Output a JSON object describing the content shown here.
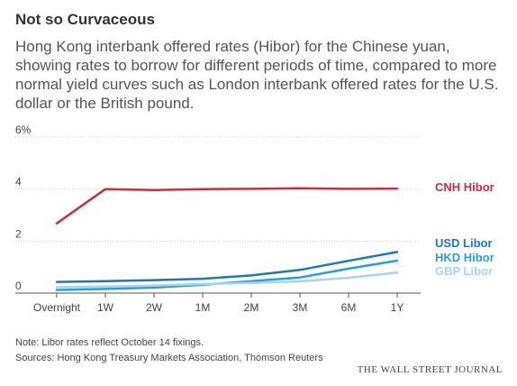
{
  "header": {
    "title": "Not so Curvaceous",
    "subtitle": "Hong Kong interbank offered rates (Hibor) for the Chinese yuan, showing rates to borrow for different periods of time, compared to more normal yield curves such as London interbank offered rates for the U.S. dollar or the British pound."
  },
  "footer": {
    "note": "Note: Libor rates reflect October 14 fixings.",
    "sources": "Sources: Hong Kong Treasury Markets Association, Thomson Reuters",
    "publisher": "THE WALL STREET JOURNAL"
  },
  "chart_data": {
    "type": "line",
    "title": "Not so Curvaceous",
    "xlabel": "",
    "ylabel": "",
    "categories": [
      "Overnight",
      "1W",
      "2W",
      "1M",
      "2M",
      "3M",
      "6M",
      "1Y"
    ],
    "ylim": [
      0,
      6
    ],
    "y_ticks": [
      0,
      2,
      4,
      6
    ],
    "y_tick_labels": [
      "0",
      "2",
      "4",
      "6%"
    ],
    "grid": true,
    "legend": "direct labels at right end of lines",
    "series": [
      {
        "name": "CNH Hibor",
        "color": "#c9303e",
        "values": [
          2.68,
          4.0,
          3.96,
          4.0,
          4.01,
          4.03,
          4.01,
          4.02
        ]
      },
      {
        "name": "USD Libor",
        "color": "#1f78b4",
        "values": [
          0.43,
          0.46,
          0.5,
          0.55,
          0.68,
          0.89,
          1.24,
          1.58
        ]
      },
      {
        "name": "HKD Hibor",
        "color": "#2a9fd6",
        "values": [
          0.12,
          0.16,
          0.21,
          0.32,
          0.46,
          0.6,
          0.94,
          1.25
        ]
      },
      {
        "name": "GBP Libor",
        "color": "#a6d3ef",
        "values": [
          0.23,
          0.25,
          0.29,
          0.35,
          0.39,
          0.45,
          0.59,
          0.79
        ]
      }
    ]
  }
}
